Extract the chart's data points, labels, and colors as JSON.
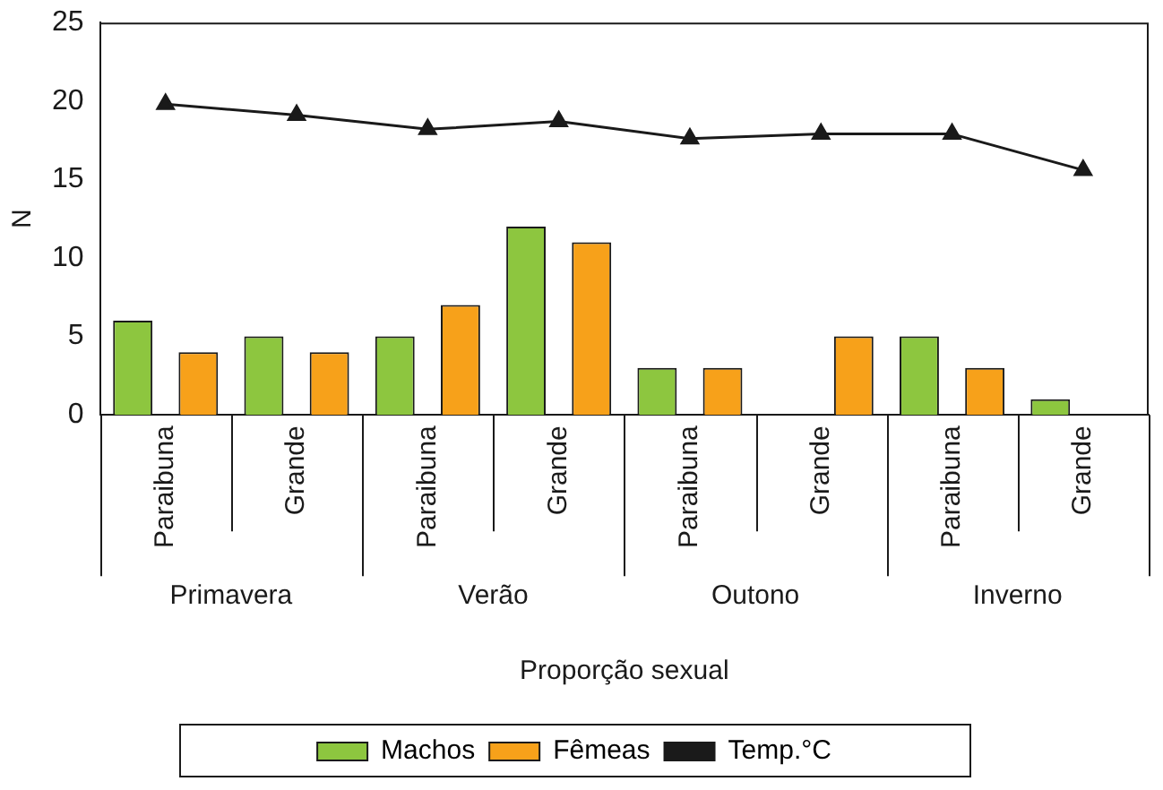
{
  "chart_data": {
    "type": "bar",
    "ylabel": "N",
    "xlabel": "Proporção sexual",
    "categories": [
      "Paraibuna",
      "Grande",
      "Paraibuna",
      "Grande",
      "Paraibuna",
      "Grande",
      "Paraibuna",
      "Grande"
    ],
    "annotations": [
      "Primavera",
      "Verão",
      "Outono",
      "Inverno"
    ],
    "series": [
      {
        "name": "Machos",
        "color": "#8dc63f",
        "values": [
          6,
          5,
          5,
          12,
          3,
          0,
          5,
          1
        ]
      },
      {
        "name": "Fêmeas",
        "color": "#f7a11a",
        "values": [
          4,
          4,
          7,
          11,
          3,
          5,
          3,
          0
        ]
      },
      {
        "name": "Temp.°C",
        "type": "line",
        "color": "#1a1a1a",
        "marker": "triangle",
        "values": [
          19.8,
          19.1,
          18.2,
          18.7,
          17.6,
          17.9,
          17.9,
          15.6
        ]
      }
    ],
    "ylim": [
      0,
      25
    ],
    "yticks": [
      0,
      5,
      10,
      15,
      20,
      25
    ],
    "grid": false,
    "legend": "bottom"
  }
}
